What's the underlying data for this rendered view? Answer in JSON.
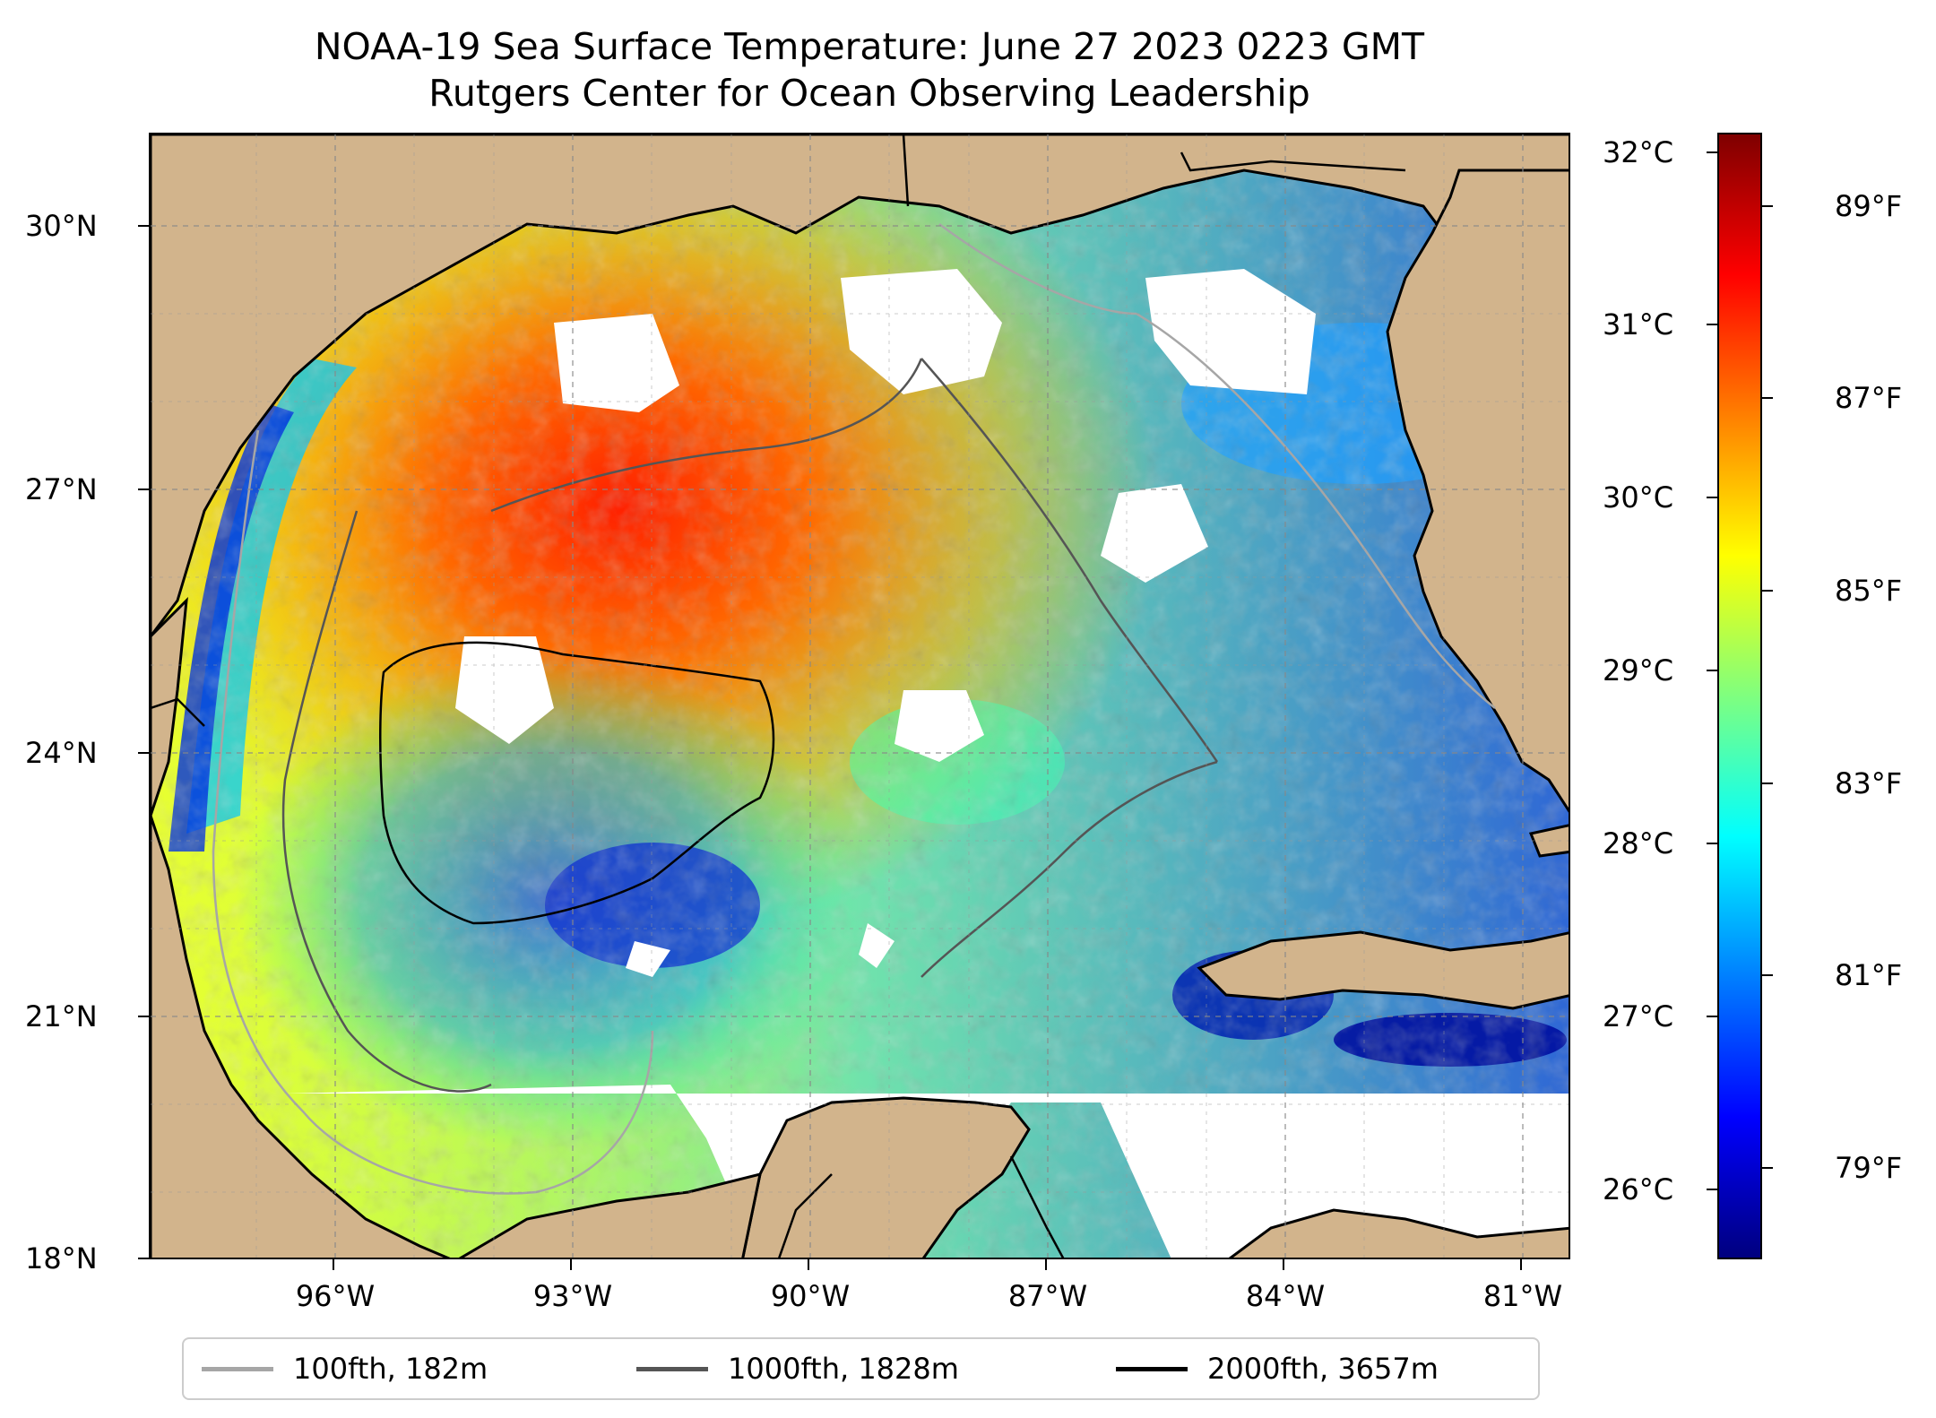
{
  "title": "NOAA-19 Sea Surface Temperature: June 27 2023 0223 GMT",
  "subtitle": "Rutgers Center for Ocean Observing Leadership",
  "colors": {
    "land": "#d2b48c",
    "no_data": "#ffffff",
    "coast": "#000000",
    "grid": "#999999",
    "contour_100fth": "#a6a6a6",
    "contour_1000fth": "#555555",
    "contour_2000fth": "#000000"
  },
  "map": {
    "lat_labels": [
      "30°N",
      "27°N",
      "24°N",
      "21°N",
      "18°N"
    ],
    "lon_labels": [
      "96°W",
      "93°W",
      "90°W",
      "87°W",
      "84°W",
      "81°W"
    ],
    "lat_range": [
      18,
      31
    ],
    "lon_range": [
      -98.3,
      -80.4
    ],
    "sst_range_c": [
      25.6,
      32.1
    ],
    "features": [
      "gulf-of-mexico",
      "florida",
      "yucatan-peninsula",
      "cuba",
      "mexico",
      "texas-louisiana-coast"
    ]
  },
  "colorbar": {
    "colormap": "jet",
    "celsius_labels": [
      "32°C",
      "31°C",
      "30°C",
      "29°C",
      "28°C",
      "27°C",
      "26°C"
    ],
    "fahrenheit_labels": [
      "89°F",
      "87°F",
      "85°F",
      "83°F",
      "81°F",
      "79°F"
    ]
  },
  "legend": {
    "items": [
      {
        "label": "100fth, 182m",
        "color": "#a6a6a6"
      },
      {
        "label": "1000fth, 1828m",
        "color": "#555555"
      },
      {
        "label": "2000fth, 3657m",
        "color": "#000000"
      }
    ]
  }
}
